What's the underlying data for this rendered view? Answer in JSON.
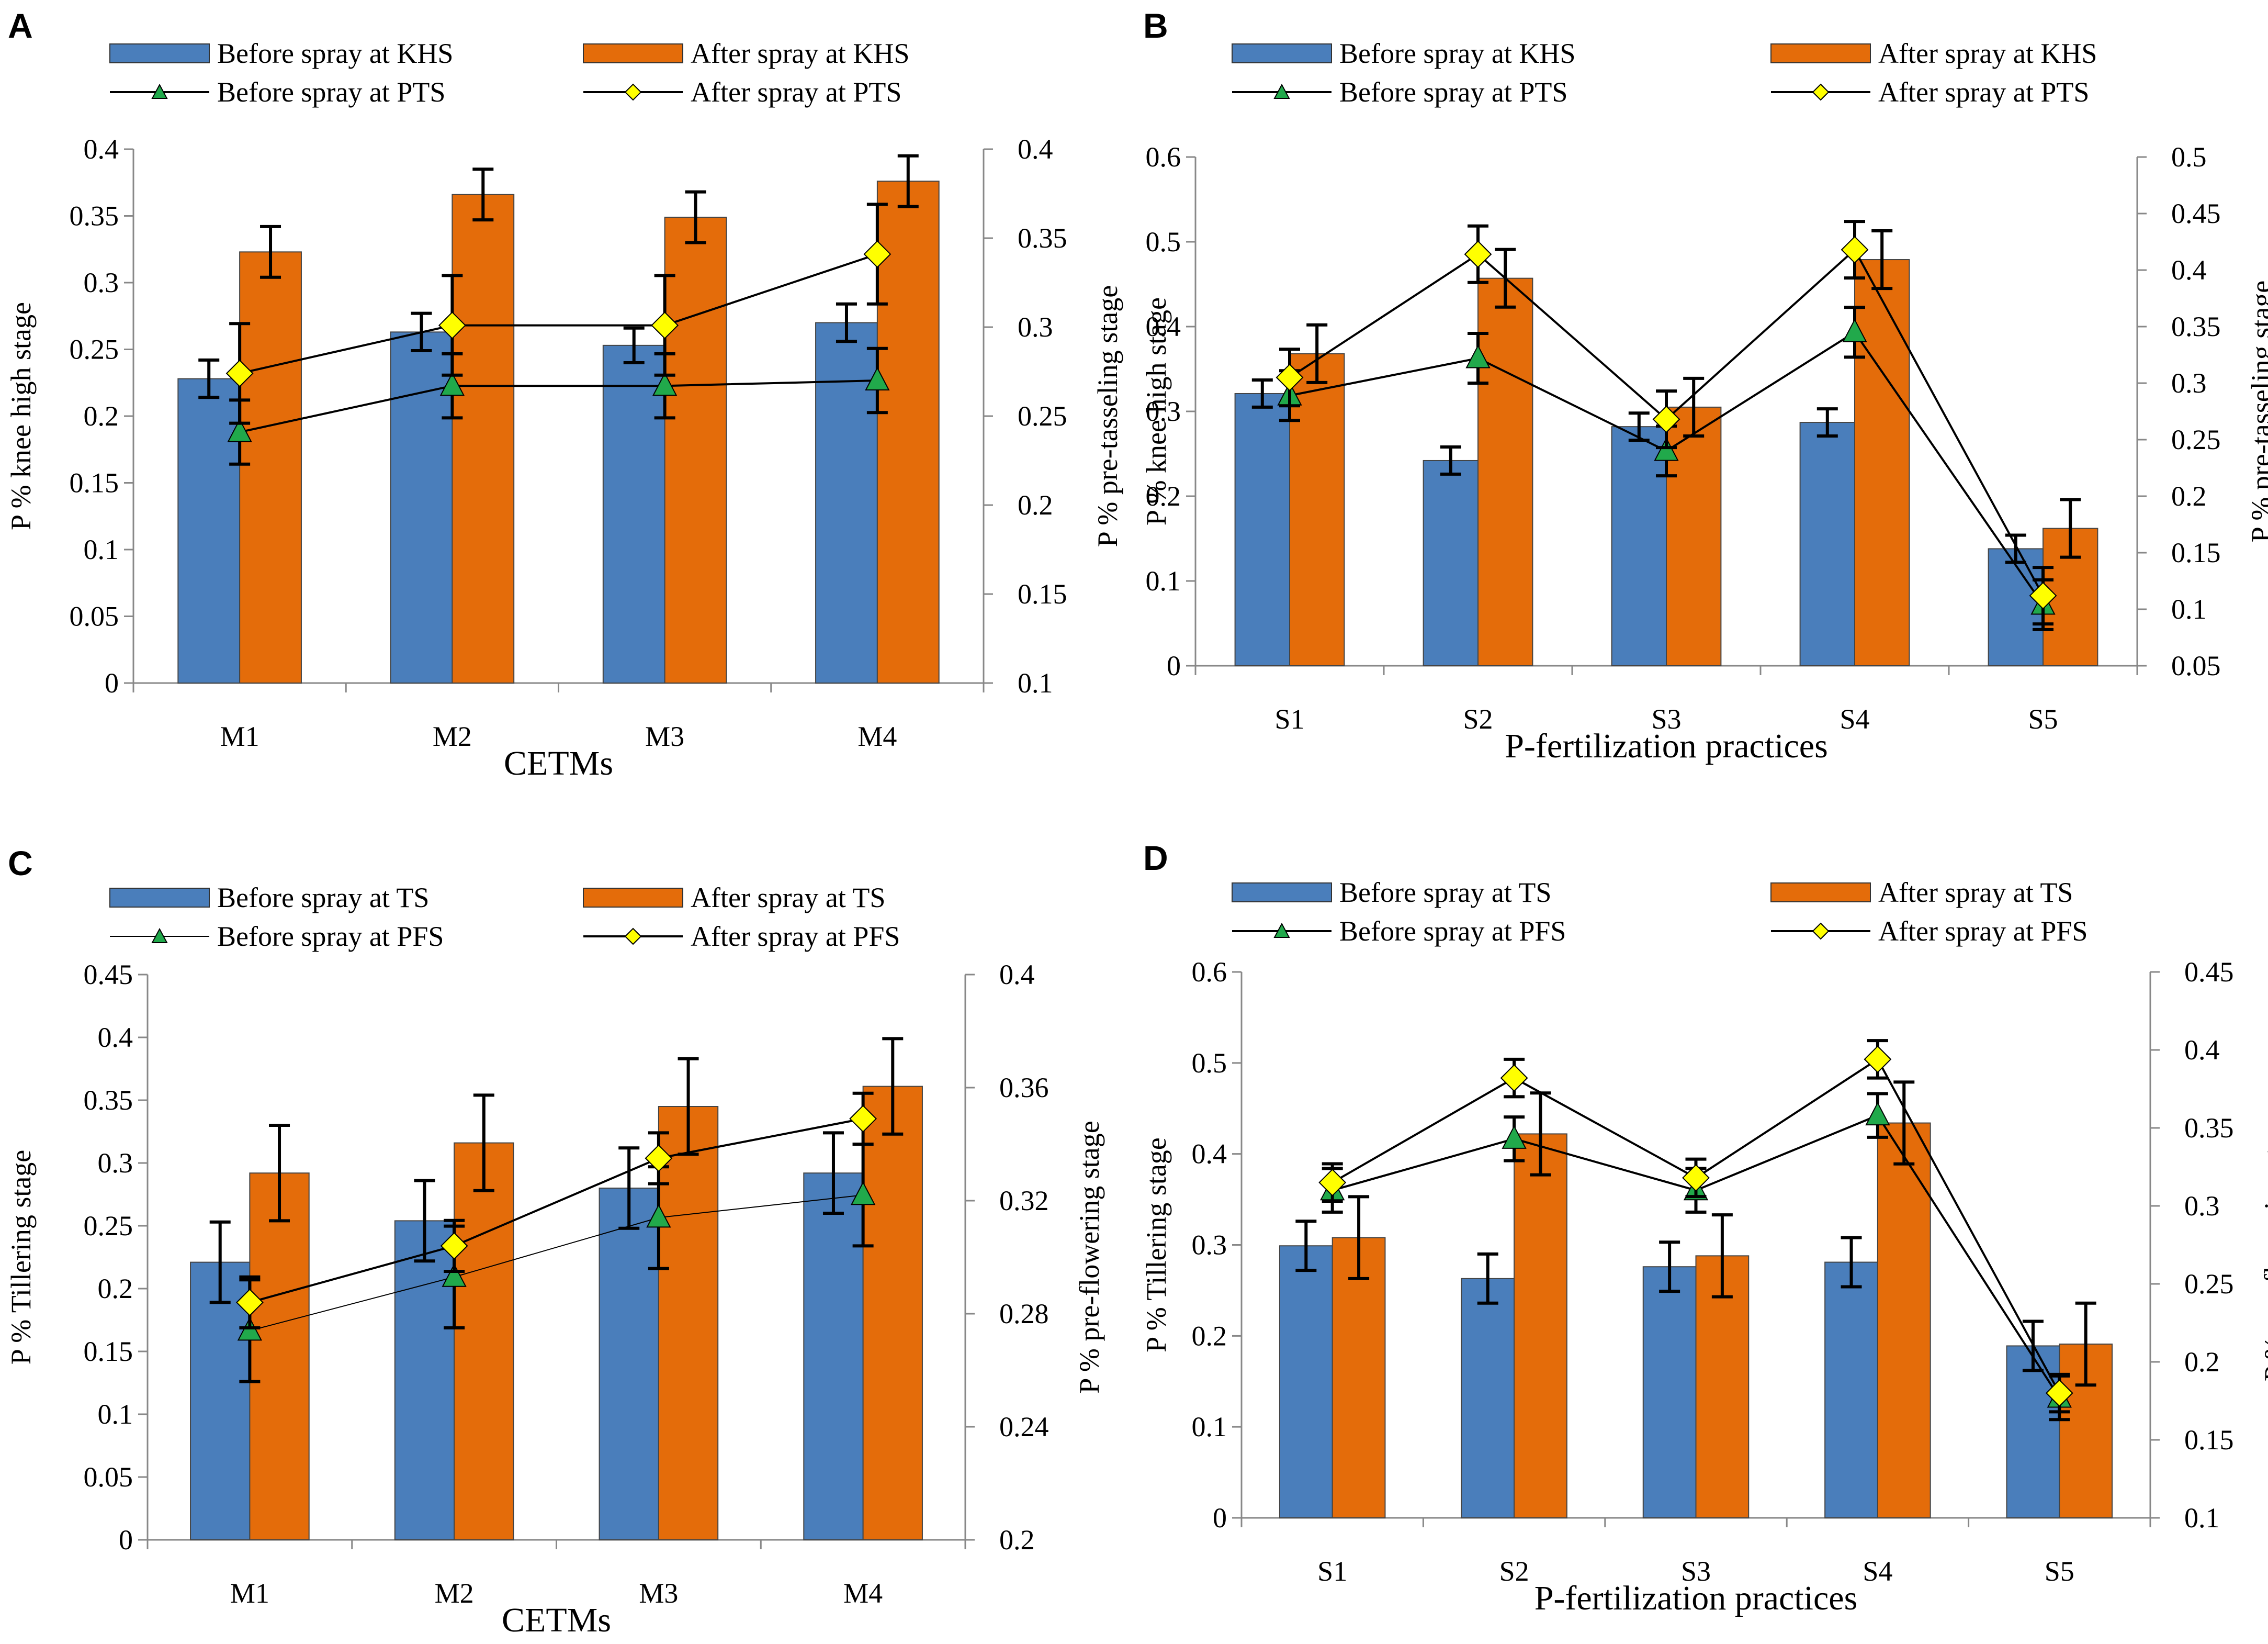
{
  "charts": [
    {
      "letter": "A",
      "type": "bar+line",
      "bar_colors": [
        "#4a7ebb",
        "#e46c0a"
      ],
      "legend": [
        "Before spray at KHS",
        "After spray at KHS",
        "Before spray at PTS",
        "After spray at PTS"
      ],
      "xlabel": "CETMs",
      "ylabel_left": "P % knee high stage",
      "ylabel_right": "P % pre-tasseling stage",
      "categories": [
        "M1",
        "M2",
        "M3",
        "M4"
      ],
      "left_ticks": [
        "0",
        "0.05",
        "0.1",
        "0.15",
        "0.2",
        "0.25",
        "0.3",
        "0.35",
        "0.4"
      ],
      "right_ticks": [
        "0.1",
        "0.15",
        "0.2",
        "0.25",
        "0.3",
        "0.35",
        "0.4"
      ],
      "chart_data": {
        "type": "bar",
        "left_axis": {
          "ylim": [
            0,
            0.4
          ]
        },
        "right_axis": {
          "ylim": [
            0.1,
            0.4
          ]
        },
        "bar_series": [
          {
            "name": "Before spray at KHS",
            "values": [
              0.228,
              0.263,
              0.253,
              0.27
            ],
            "errors": [
              0.014,
              0.014,
              0.013,
              0.014
            ]
          },
          {
            "name": "After spray at KHS",
            "values": [
              0.323,
              0.366,
              0.349,
              0.376
            ],
            "errors": [
              0.019,
              0.019,
              0.019,
              0.019
            ]
          }
        ],
        "line_series": [
          {
            "name": "Before spray at PTS",
            "marker": "triangle",
            "values": [
              0.241,
              0.267,
              0.267,
              0.27
            ],
            "errors": [
              0.018,
              0.018,
              0.018,
              0.018
            ]
          },
          {
            "name": "After spray at PTS",
            "marker": "diamond",
            "values": [
              0.274,
              0.301,
              0.301,
              0.341
            ],
            "errors": [
              0.028,
              0.028,
              0.028,
              0.028
            ]
          }
        ]
      }
    },
    {
      "letter": "B",
      "type": "bar+line",
      "bar_colors": [
        "#4a7ebb",
        "#e46c0a"
      ],
      "legend": [
        "Before spray at KHS",
        "After spray at KHS",
        "Before spray at PTS",
        "After spray at PTS"
      ],
      "xlabel": "P-fertilization practices",
      "ylabel_left": "P % knee high stage",
      "ylabel_right": "P % pre-tasseling stage",
      "categories": [
        "S1",
        "S2",
        "S3",
        "S4",
        "S5"
      ],
      "left_ticks": [
        "0",
        "0.1",
        "0.2",
        "0.3",
        "0.4",
        "0.5",
        "0.6"
      ],
      "right_ticks": [
        "0.05",
        "0.1",
        "0.15",
        "0.2",
        "0.25",
        "0.3",
        "0.35",
        "0.4",
        "0.45",
        "0.5"
      ],
      "chart_data": {
        "type": "bar",
        "left_axis": {
          "ylim": [
            0,
            0.6
          ]
        },
        "right_axis": {
          "ylim": [
            0.05,
            0.5
          ]
        },
        "bar_series": [
          {
            "name": "Before spray at KHS",
            "values": [
              0.321,
              0.242,
              0.282,
              0.287,
              0.138
            ],
            "errors": [
              0.016,
              0.016,
              0.016,
              0.016,
              0.016
            ]
          },
          {
            "name": "After spray at KHS",
            "values": [
              0.368,
              0.457,
              0.305,
              0.479,
              0.162
            ],
            "errors": [
              0.034,
              0.034,
              0.034,
              0.034,
              0.034
            ]
          }
        ],
        "line_series": [
          {
            "name": "Before spray at PTS",
            "marker": "triangle",
            "values": [
              0.289,
              0.322,
              0.24,
              0.345,
              0.104
            ],
            "errors": [
              0.022,
              0.022,
              0.022,
              0.022,
              0.022
            ]
          },
          {
            "name": "After spray at PTS",
            "marker": "diamond",
            "values": [
              0.305,
              0.414,
              0.268,
              0.418,
              0.112
            ],
            "errors": [
              0.025,
              0.025,
              0.025,
              0.025,
              0.025
            ]
          }
        ]
      }
    },
    {
      "letter": "C",
      "type": "bar+line",
      "bar_colors": [
        "#4a7ebb",
        "#e46c0a"
      ],
      "legend": [
        "Before spray at TS",
        "After spray at TS",
        "Before spray at PFS",
        "After spray at PFS"
      ],
      "xlabel": "CETMs",
      "ylabel_left": "P % Tillering stage",
      "ylabel_right": "P % pre-flowering stage",
      "categories": [
        "M1",
        "M2",
        "M3",
        "M4"
      ],
      "left_ticks": [
        "0",
        "0.05",
        "0.1",
        "0.15",
        "0.2",
        "0.25",
        "0.3",
        "0.35",
        "0.4",
        "0.45"
      ],
      "right_ticks": [
        "0.2",
        "0.24",
        "0.28",
        "0.32",
        "0.36",
        "0.4"
      ],
      "chart_data": {
        "type": "bar",
        "left_axis": {
          "ylim": [
            0,
            0.45
          ]
        },
        "right_axis": {
          "ylim": [
            0.2,
            0.4
          ]
        },
        "bar_series": [
          {
            "name": "Before spray at TS",
            "values": [
              0.221,
              0.254,
              0.28,
              0.292
            ],
            "errors": [
              0.032,
              0.032,
              0.032,
              0.032
            ]
          },
          {
            "name": "After spray at TS",
            "values": [
              0.292,
              0.316,
              0.345,
              0.361
            ],
            "errors": [
              0.038,
              0.038,
              0.038,
              0.038
            ]
          }
        ],
        "line_series": [
          {
            "name": "Before spray at PFS",
            "marker": "triangle",
            "values": [
              0.274,
              0.293,
              0.314,
              0.322
            ],
            "errors": [
              0.018,
              0.018,
              0.018,
              0.018
            ]
          },
          {
            "name": "After spray at PFS",
            "marker": "diamond",
            "values": [
              0.284,
              0.304,
              0.335,
              0.349
            ],
            "errors": [
              0.009,
              0.009,
              0.009,
              0.009
            ]
          }
        ]
      }
    },
    {
      "letter": "D",
      "type": "bar+line",
      "bar_colors": [
        "#4a7ebb",
        "#e46c0a"
      ],
      "legend": [
        "Before spray at TS",
        "After spray at TS",
        "Before spray at PFS",
        "After spray at PFS"
      ],
      "xlabel": "P-fertilization practices",
      "ylabel_left": "P % Tillering stage",
      "ylabel_right": "P % pre-flowering stage",
      "categories": [
        "S1",
        "S2",
        "S3",
        "S4",
        "S5"
      ],
      "left_ticks": [
        "0",
        "0.1",
        "0.2",
        "0.3",
        "0.4",
        "0.5",
        "0.6"
      ],
      "right_ticks": [
        "0.1",
        "0.15",
        "0.2",
        "0.25",
        "0.3",
        "0.35",
        "0.4",
        "0.45"
      ],
      "chart_data": {
        "type": "bar",
        "left_axis": {
          "ylim": [
            0,
            0.6
          ]
        },
        "right_axis": {
          "ylim": [
            0.1,
            0.45
          ]
        },
        "bar_series": [
          {
            "name": "Before spray at TS",
            "values": [
              0.299,
              0.263,
              0.276,
              0.281,
              0.189
            ],
            "errors": [
              0.027,
              0.027,
              0.027,
              0.027,
              0.027
            ]
          },
          {
            "name": "After spray at TS",
            "values": [
              0.308,
              0.422,
              0.288,
              0.434,
              0.191
            ],
            "errors": [
              0.045,
              0.045,
              0.045,
              0.045,
              0.045
            ]
          }
        ],
        "line_series": [
          {
            "name": "Before spray at PFS",
            "marker": "triangle",
            "values": [
              0.31,
              0.343,
              0.31,
              0.358,
              0.177
            ],
            "errors": [
              0.014,
              0.014,
              0.014,
              0.014,
              0.014
            ]
          },
          {
            "name": "After spray at PFS",
            "marker": "diamond",
            "values": [
              0.315,
              0.382,
              0.318,
              0.394,
              0.18
            ],
            "errors": [
              0.012,
              0.012,
              0.012,
              0.012,
              0.012
            ]
          }
        ]
      }
    }
  ]
}
